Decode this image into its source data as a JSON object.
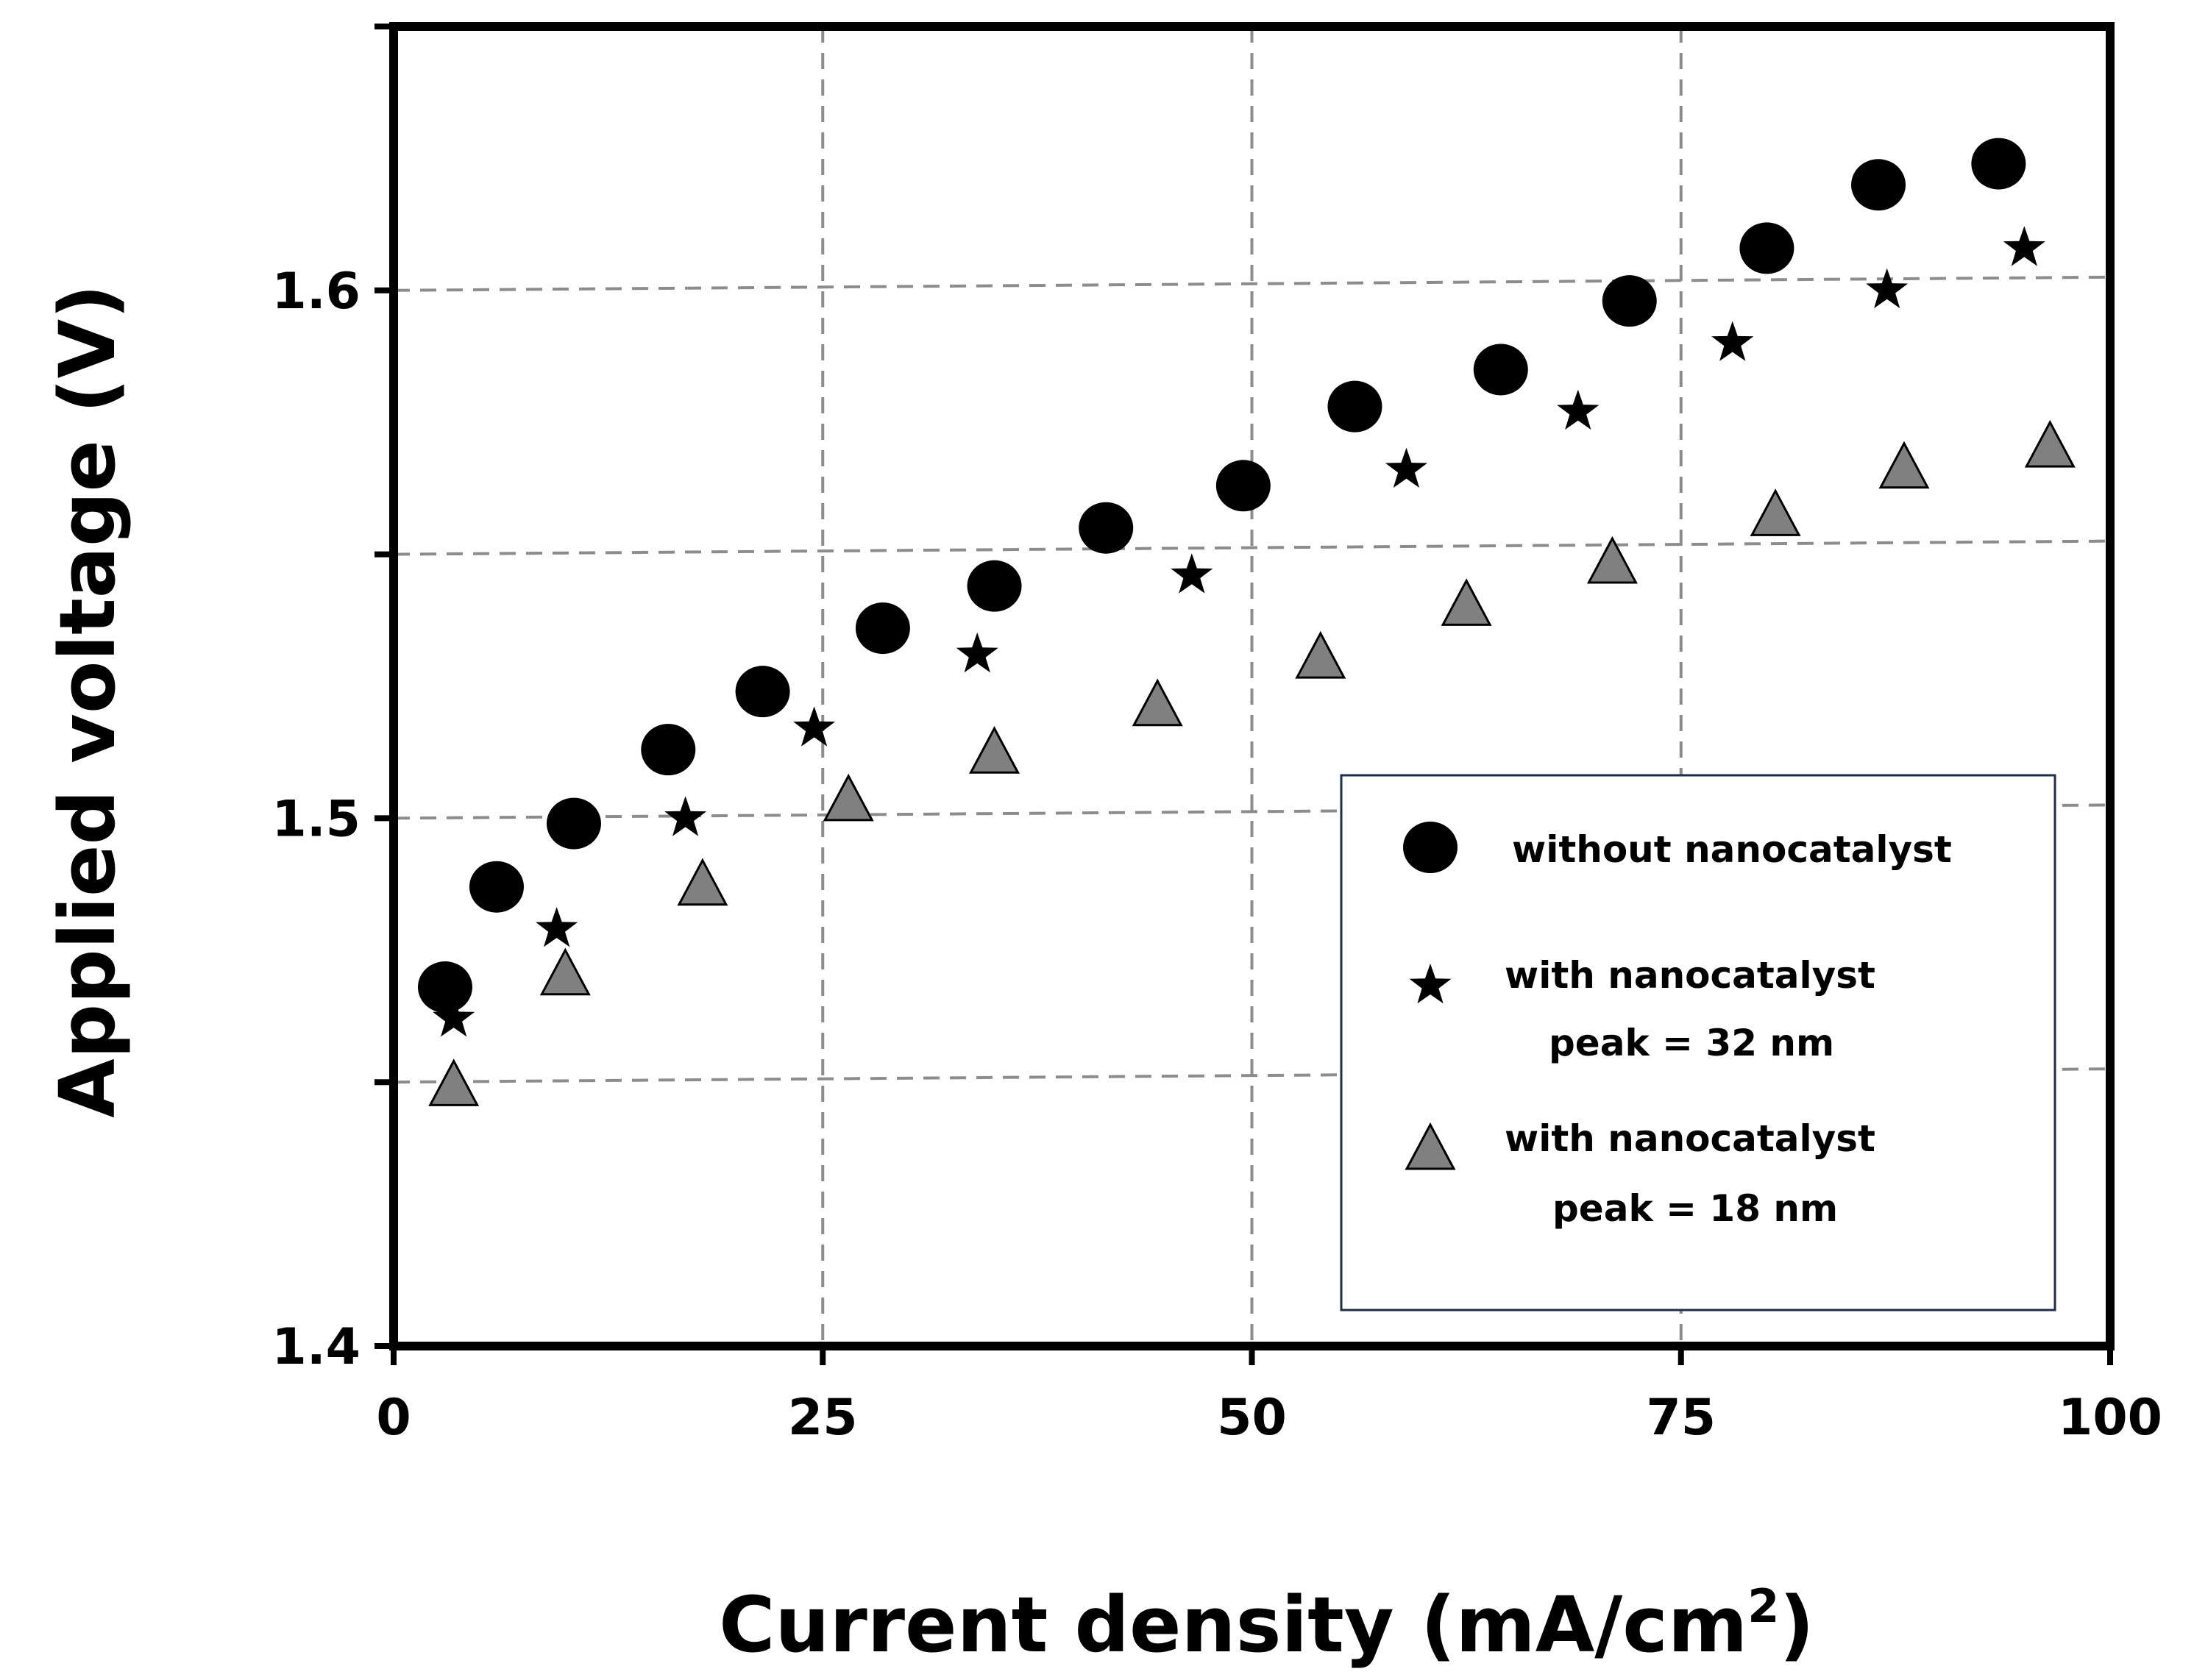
{
  "chart_data": {
    "type": "scatter",
    "xlabel_main": "Current density (mA/cm",
    "xlabel_sup": "2",
    "xlabel_close": ")",
    "ylabel": "Applied voltage (V)",
    "xlim": [
      0,
      100
    ],
    "ylim": [
      1.4,
      1.65
    ],
    "x_ticks": [
      {
        "value": 0,
        "label": "0"
      },
      {
        "value": 25,
        "label": "25"
      },
      {
        "value": 50,
        "label": "50"
      },
      {
        "value": 75,
        "label": "75"
      },
      {
        "value": 100,
        "label": "100"
      }
    ],
    "y_ticks": [
      {
        "value": 1.4,
        "label": "1.4"
      },
      {
        "value": 1.45,
        "label": ""
      },
      {
        "value": 1.5,
        "label": "1.5"
      },
      {
        "value": 1.55,
        "label": ""
      },
      {
        "value": 1.6,
        "label": "1.6"
      }
    ],
    "grid": true,
    "legend_position": "bottom-right",
    "series": [
      {
        "name": "without nanocatalyst",
        "marker": "circle",
        "color": "#000000",
        "x": [
          3,
          6,
          10.5,
          16,
          21.5,
          28.5,
          35,
          41.5,
          49.5,
          56,
          64.5,
          72,
          80,
          86.5,
          93.5
        ],
        "y": [
          1.468,
          1.487,
          1.499,
          1.513,
          1.524,
          1.536,
          1.544,
          1.555,
          1.563,
          1.578,
          1.585,
          1.598,
          1.608,
          1.62,
          1.624
        ]
      },
      {
        "name": "with nanocatalyst peak = 32 nm",
        "legend_lines": [
          "with nanocatalyst",
          "peak = 32 nm"
        ],
        "marker": "star",
        "color": "#000000",
        "x": [
          3.5,
          9.5,
          17,
          24.5,
          34,
          46.5,
          59,
          69,
          78,
          87,
          95
        ],
        "y": [
          1.462,
          1.479,
          1.5,
          1.517,
          1.531,
          1.546,
          1.566,
          1.577,
          1.59,
          1.6,
          1.608
        ]
      },
      {
        "name": "with nanocatalyst peak = 18 nm",
        "legend_lines": [
          "with nanocatalyst",
          "peak = 18 nm"
        ],
        "marker": "triangle",
        "color": "#808080",
        "x": [
          3.5,
          10,
          18,
          26.5,
          35,
          44.5,
          54,
          62.5,
          71,
          80.5,
          88,
          96.5
        ],
        "y": [
          1.449,
          1.47,
          1.487,
          1.503,
          1.512,
          1.521,
          1.53,
          1.54,
          1.548,
          1.557,
          1.566,
          1.57
        ]
      }
    ]
  }
}
